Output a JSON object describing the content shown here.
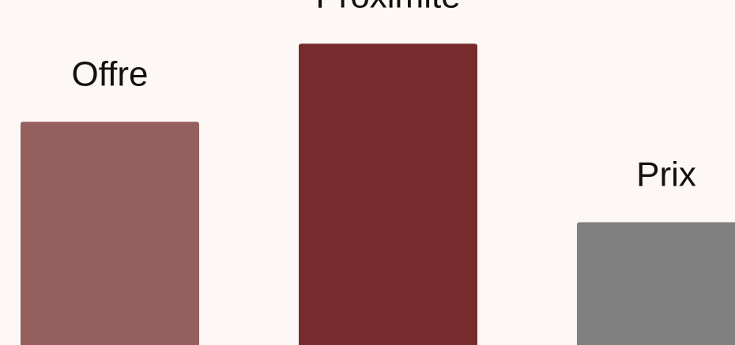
{
  "chart_data": {
    "type": "bar",
    "categories": [
      "Offre",
      "Proximité",
      "Prix"
    ],
    "values": [
      40,
      54,
      22
    ],
    "colors": [
      "#955f5d",
      "#762b2c",
      "#808080"
    ],
    "background": "#fdf7f5",
    "ylim": [
      0,
      59
    ],
    "title": "",
    "xlabel": "",
    "ylabel": "",
    "grid": false,
    "legend": "none"
  }
}
